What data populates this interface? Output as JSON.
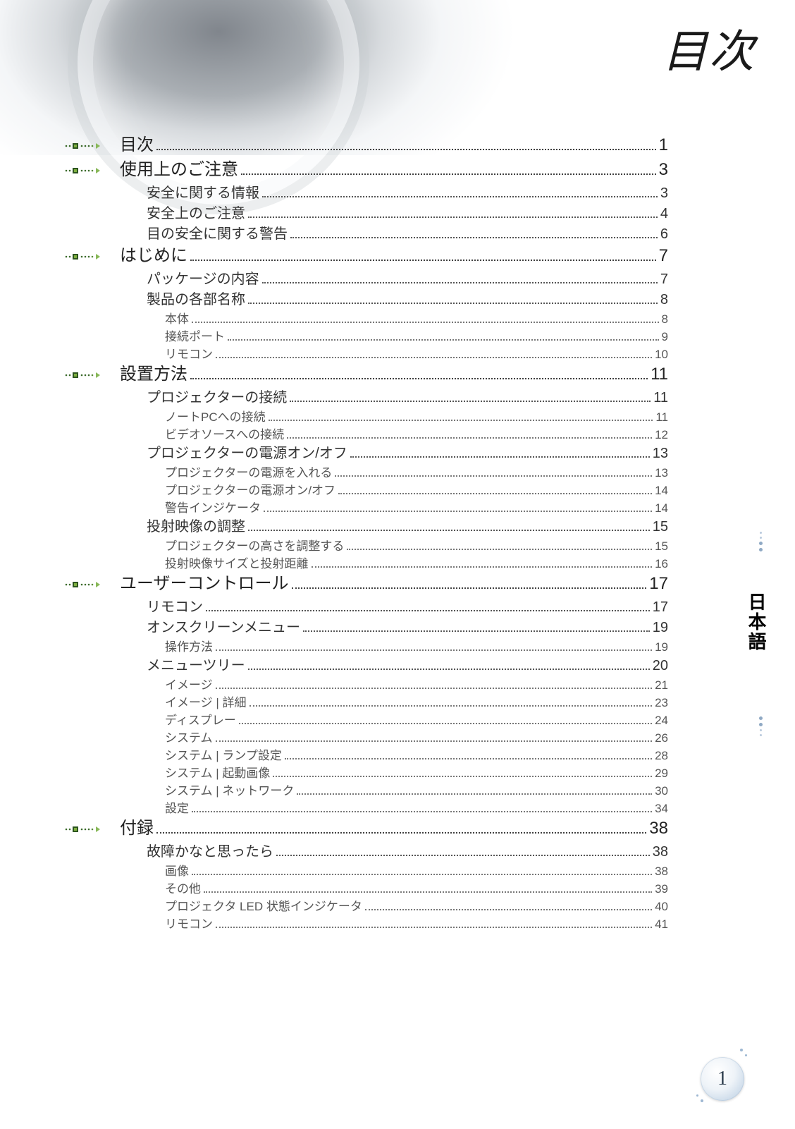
{
  "page_title": "目次",
  "side_language_label": "日本語",
  "page_number": "1",
  "colors": {
    "text_main": "#222222",
    "text_sub": "#555555",
    "leader": "#5a5a5a",
    "accent_blue": "#8fa9c4",
    "sphere_light": "#eef3f8",
    "sphere_dark": "#b7cbe0"
  },
  "typography": {
    "title_font": "serif italic",
    "title_size_pt": 48,
    "lvl1_size_pt": 18,
    "lvl2_size_pt": 15,
    "lvl3_size_pt": 13
  },
  "toc": [
    {
      "level": 1,
      "label": "目次",
      "page": "1"
    },
    {
      "level": 1,
      "label": "使用上のご注意",
      "page": "3"
    },
    {
      "level": 2,
      "label": "安全に関する情報",
      "page": "3"
    },
    {
      "level": 2,
      "label": "安全上のご注意",
      "page": "4"
    },
    {
      "level": 2,
      "label": "目の安全に関する警告",
      "page": "6"
    },
    {
      "level": 1,
      "label": "はじめに",
      "page": "7"
    },
    {
      "level": 2,
      "label": "パッケージの内容",
      "page": "7"
    },
    {
      "level": 2,
      "label": "製品の各部名称",
      "page": "8"
    },
    {
      "level": 3,
      "label": "本体",
      "page": "8"
    },
    {
      "level": 3,
      "label": "接続ポート",
      "page": "9"
    },
    {
      "level": 3,
      "label": "リモコン",
      "page": "10"
    },
    {
      "level": 1,
      "label": "設置方法",
      "page": "11"
    },
    {
      "level": 2,
      "label": "プロジェクターの接続",
      "page": "11"
    },
    {
      "level": 3,
      "label": "ノートPCへの接続",
      "page": "11"
    },
    {
      "level": 3,
      "label": "ビデオソースへの接続",
      "page": "12"
    },
    {
      "level": 2,
      "label": "プロジェクターの電源オン/オフ",
      "page": "13"
    },
    {
      "level": 3,
      "label": "プロジェクターの電源を入れる",
      "page": "13"
    },
    {
      "level": 3,
      "label": "プロジェクターの電源オン/オフ",
      "page": "14"
    },
    {
      "level": 3,
      "label": "警告インジケータ",
      "page": "14"
    },
    {
      "level": 2,
      "label": "投射映像の調整",
      "page": "15"
    },
    {
      "level": 3,
      "label": "プロジェクターの高さを調整する",
      "page": "15"
    },
    {
      "level": 3,
      "label": "投射映像サイズと投射距離",
      "page": "16"
    },
    {
      "level": 1,
      "label": "ユーザーコントロール",
      "page": "17"
    },
    {
      "level": 2,
      "label": "リモコン",
      "page": "17"
    },
    {
      "level": 2,
      "label": "オンスクリーンメニュー",
      "page": "19"
    },
    {
      "level": 3,
      "label": "操作方法",
      "page": "19"
    },
    {
      "level": 2,
      "label": "メニューツリー",
      "page": "20"
    },
    {
      "level": 3,
      "label": "イメージ",
      "page": "21"
    },
    {
      "level": 3,
      "label": "イメージ | 詳細",
      "page": "23"
    },
    {
      "level": 3,
      "label": "ディスプレー",
      "page": "24"
    },
    {
      "level": 3,
      "label": "システム",
      "page": "26"
    },
    {
      "level": 3,
      "label": "システム | ランプ設定",
      "page": "28"
    },
    {
      "level": 3,
      "label": "システム | 起動画像",
      "page": "29"
    },
    {
      "level": 3,
      "label": "システム | ネットワーク",
      "page": "30"
    },
    {
      "level": 3,
      "label": "設定",
      "page": "34"
    },
    {
      "level": 1,
      "label": "付録",
      "page": "38"
    },
    {
      "level": 2,
      "label": "故障かなと思ったら",
      "page": "38"
    },
    {
      "level": 3,
      "label": "画像",
      "page": "38"
    },
    {
      "level": 3,
      "label": "その他",
      "page": "39"
    },
    {
      "level": 3,
      "label": "プロジェクタ LED 状態インジケータ",
      "page": "40"
    },
    {
      "level": 3,
      "label": "リモコン",
      "page": "41"
    }
  ]
}
